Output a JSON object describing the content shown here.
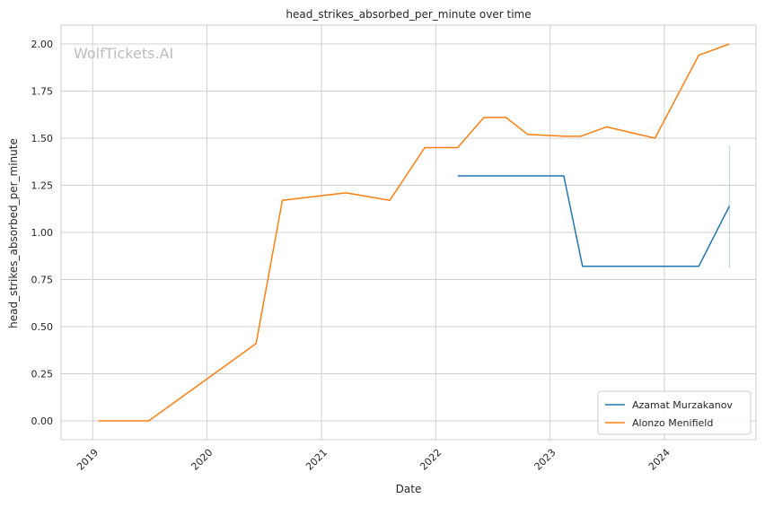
{
  "chart_data": {
    "type": "line",
    "title": "head_strikes_absorbed_per_minute over time",
    "xlabel": "Date",
    "ylabel": "head_strikes_absorbed_per_minute",
    "watermark": "WolfTickets.AI",
    "x_axis": {
      "type": "date",
      "range": [
        "2018-09-22",
        "2024-10-20"
      ],
      "ticks": [
        "2019",
        "2020",
        "2021",
        "2022",
        "2023",
        "2024"
      ],
      "tick_dates": [
        "2019-01-01",
        "2020-01-01",
        "2021-01-01",
        "2022-01-01",
        "2023-01-01",
        "2024-01-01"
      ]
    },
    "y_axis": {
      "range": [
        -0.1,
        2.1
      ],
      "ticks": [
        "0.00",
        "0.25",
        "0.50",
        "0.75",
        "1.00",
        "1.25",
        "1.50",
        "1.75",
        "2.00"
      ],
      "tick_values": [
        0,
        0.25,
        0.5,
        0.75,
        1.0,
        1.25,
        1.5,
        1.75,
        2.0
      ]
    },
    "grid": true,
    "legend_position": "bottom-right",
    "series": [
      {
        "name": "Azamat Murzakanov",
        "color": "#1f77b4",
        "points": [
          [
            "2022-03-12",
            1.3
          ],
          [
            "2023-02-14",
            1.3
          ],
          [
            "2023-04-15",
            0.82
          ],
          [
            "2024-04-20",
            0.82
          ],
          [
            "2024-07-27",
            1.14
          ]
        ],
        "band": {
          "date": "2024-07-27",
          "low": 0.81,
          "high": 1.46
        }
      },
      {
        "name": "Alonzo Menifield",
        "color": "#ff7f0e",
        "points": [
          [
            "2019-01-19",
            0.0
          ],
          [
            "2019-06-29",
            0.0
          ],
          [
            "2020-06-06",
            0.41
          ],
          [
            "2020-08-29",
            1.17
          ],
          [
            "2021-03-20",
            1.21
          ],
          [
            "2021-08-07",
            1.17
          ],
          [
            "2021-11-27",
            1.45
          ],
          [
            "2022-03-12",
            1.45
          ],
          [
            "2022-06-04",
            1.61
          ],
          [
            "2022-08-13",
            1.61
          ],
          [
            "2022-10-22",
            1.52
          ],
          [
            "2023-02-18",
            1.51
          ],
          [
            "2023-04-08",
            1.51
          ],
          [
            "2023-07-01",
            1.56
          ],
          [
            "2023-12-02",
            1.5
          ],
          [
            "2024-04-20",
            1.94
          ],
          [
            "2024-07-27",
            2.0
          ]
        ]
      }
    ]
  }
}
